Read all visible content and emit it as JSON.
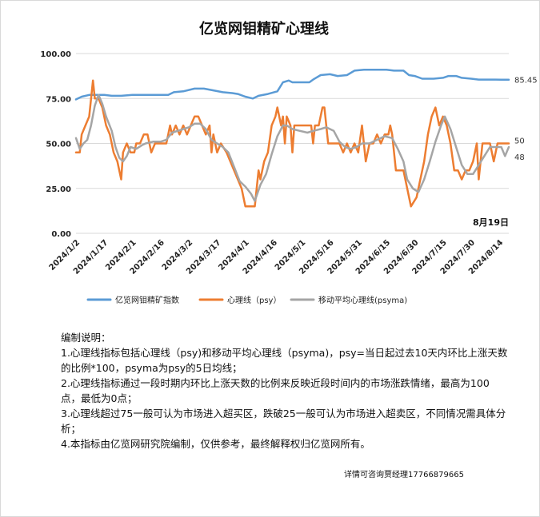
{
  "chart_data": {
    "type": "line",
    "title": "亿览网钼精矿心理线",
    "date_annotation": "8月19日",
    "ylim": [
      0,
      100
    ],
    "y_ticks": [
      "0.00",
      "25.00",
      "50.00",
      "75.00",
      "100.00"
    ],
    "x_ticks": [
      "2024/1/2",
      "2024/1/17",
      "2024/2/1",
      "2024/2/16",
      "2024/3/2",
      "2024/3/17",
      "2024/4/1",
      "2024/4/16",
      "2024/5/1",
      "2024/5/16",
      "2024/5/31",
      "2024/6/15",
      "2024/6/30",
      "2024/7/15",
      "2024/7/30",
      "2024/8/14"
    ],
    "x_range": [
      "2024-01-02",
      "2024-08-19"
    ],
    "grid": "horizontal",
    "legend_position": "bottom",
    "series": [
      {
        "name": "亿览网钼精矿指数",
        "color": "#5b9bd5",
        "end_label": "85.45",
        "points": [
          [
            "2024-01-02",
            74.5
          ],
          [
            "2024-01-05",
            76
          ],
          [
            "2024-01-09",
            77
          ],
          [
            "2024-01-13",
            77
          ],
          [
            "2024-01-17",
            77
          ],
          [
            "2024-01-21",
            76.5
          ],
          [
            "2024-01-26",
            76.5
          ],
          [
            "2024-02-01",
            77
          ],
          [
            "2024-02-10",
            77
          ],
          [
            "2024-02-16",
            77
          ],
          [
            "2024-02-20",
            77
          ],
          [
            "2024-02-23",
            78.5
          ],
          [
            "2024-02-28",
            79
          ],
          [
            "2024-03-05",
            80.5
          ],
          [
            "2024-03-10",
            80.5
          ],
          [
            "2024-03-15",
            79.5
          ],
          [
            "2024-03-20",
            78.5
          ],
          [
            "2024-03-25",
            78
          ],
          [
            "2024-03-28",
            77.5
          ],
          [
            "2024-04-01",
            76
          ],
          [
            "2024-04-05",
            75
          ],
          [
            "2024-04-08",
            76.5
          ],
          [
            "2024-04-13",
            77.5
          ],
          [
            "2024-04-18",
            79
          ],
          [
            "2024-04-21",
            84
          ],
          [
            "2024-04-24",
            85
          ],
          [
            "2024-04-26",
            84
          ],
          [
            "2024-05-01",
            84
          ],
          [
            "2024-05-05",
            84
          ],
          [
            "2024-05-07",
            85.5
          ],
          [
            "2024-05-11",
            88
          ],
          [
            "2024-05-16",
            88.5
          ],
          [
            "2024-05-20",
            87.5
          ],
          [
            "2024-05-25",
            88
          ],
          [
            "2024-05-29",
            90.5
          ],
          [
            "2024-06-03",
            91
          ],
          [
            "2024-06-08",
            91
          ],
          [
            "2024-06-15",
            91
          ],
          [
            "2024-06-19",
            90.5
          ],
          [
            "2024-06-24",
            90.5
          ],
          [
            "2024-06-27",
            88
          ],
          [
            "2024-06-30",
            87.5
          ],
          [
            "2024-07-04",
            86
          ],
          [
            "2024-07-10",
            86
          ],
          [
            "2024-07-15",
            86.5
          ],
          [
            "2024-07-18",
            87.5
          ],
          [
            "2024-07-22",
            87.5
          ],
          [
            "2024-07-25",
            86.5
          ],
          [
            "2024-07-30",
            86
          ],
          [
            "2024-08-03",
            85.5
          ],
          [
            "2024-08-08",
            85.5
          ],
          [
            "2024-08-12",
            85.5
          ],
          [
            "2024-08-15",
            85.45
          ],
          [
            "2024-08-19",
            85.45
          ]
        ]
      },
      {
        "name": "心理线（psy）",
        "color": "#ed7d31",
        "end_label": "50",
        "points": [
          [
            "2024-01-02",
            45
          ],
          [
            "2024-01-04",
            45
          ],
          [
            "2024-01-05",
            55
          ],
          [
            "2024-01-07",
            60
          ],
          [
            "2024-01-09",
            65
          ],
          [
            "2024-01-11",
            85
          ],
          [
            "2024-01-12",
            75
          ],
          [
            "2024-01-14",
            75
          ],
          [
            "2024-01-16",
            70
          ],
          [
            "2024-01-18",
            60
          ],
          [
            "2024-01-20",
            55
          ],
          [
            "2024-01-22",
            45
          ],
          [
            "2024-01-24",
            40
          ],
          [
            "2024-01-26",
            30
          ],
          [
            "2024-01-27",
            45
          ],
          [
            "2024-01-29",
            50
          ],
          [
            "2024-01-31",
            45
          ],
          [
            "2024-02-02",
            45
          ],
          [
            "2024-02-03",
            50
          ],
          [
            "2024-02-05",
            50
          ],
          [
            "2024-02-07",
            55
          ],
          [
            "2024-02-09",
            55
          ],
          [
            "2024-02-11",
            45
          ],
          [
            "2024-02-13",
            50
          ],
          [
            "2024-02-15",
            50
          ],
          [
            "2024-02-17",
            50
          ],
          [
            "2024-02-19",
            50
          ],
          [
            "2024-02-20",
            55
          ],
          [
            "2024-02-21",
            60
          ],
          [
            "2024-02-22",
            55
          ],
          [
            "2024-02-24",
            60
          ],
          [
            "2024-02-26",
            55
          ],
          [
            "2024-02-28",
            60
          ],
          [
            "2024-03-01",
            55
          ],
          [
            "2024-03-03",
            60
          ],
          [
            "2024-03-05",
            65
          ],
          [
            "2024-03-07",
            65
          ],
          [
            "2024-03-09",
            60
          ],
          [
            "2024-03-11",
            55
          ],
          [
            "2024-03-13",
            60
          ],
          [
            "2024-03-14",
            45
          ],
          [
            "2024-03-15",
            55
          ],
          [
            "2024-03-17",
            45
          ],
          [
            "2024-03-19",
            50
          ],
          [
            "2024-03-22",
            45
          ],
          [
            "2024-03-24",
            40
          ],
          [
            "2024-03-26",
            35
          ],
          [
            "2024-03-28",
            30
          ],
          [
            "2024-03-30",
            25
          ],
          [
            "2024-04-01",
            15
          ],
          [
            "2024-04-04",
            15
          ],
          [
            "2024-04-06",
            15
          ],
          [
            "2024-04-08",
            35
          ],
          [
            "2024-04-09",
            30
          ],
          [
            "2024-04-11",
            40
          ],
          [
            "2024-04-13",
            45
          ],
          [
            "2024-04-15",
            60
          ],
          [
            "2024-04-17",
            65
          ],
          [
            "2024-04-18",
            70
          ],
          [
            "2024-04-20",
            60
          ],
          [
            "2024-04-21",
            65
          ],
          [
            "2024-04-22",
            50
          ],
          [
            "2024-04-23",
            65
          ],
          [
            "2024-04-25",
            60
          ],
          [
            "2024-04-26",
            45
          ],
          [
            "2024-04-27",
            60
          ],
          [
            "2024-05-01",
            60
          ],
          [
            "2024-05-04",
            60
          ],
          [
            "2024-05-06",
            60
          ],
          [
            "2024-05-07",
            50
          ],
          [
            "2024-05-08",
            60
          ],
          [
            "2024-05-10",
            60
          ],
          [
            "2024-05-12",
            70
          ],
          [
            "2024-05-13",
            70
          ],
          [
            "2024-05-15",
            50
          ],
          [
            "2024-05-19",
            50
          ],
          [
            "2024-05-21",
            50
          ],
          [
            "2024-05-23",
            45
          ],
          [
            "2024-05-25",
            50
          ],
          [
            "2024-05-27",
            45
          ],
          [
            "2024-05-29",
            50
          ],
          [
            "2024-05-31",
            45
          ],
          [
            "2024-06-02",
            60
          ],
          [
            "2024-06-04",
            40
          ],
          [
            "2024-06-06",
            50
          ],
          [
            "2024-06-08",
            50
          ],
          [
            "2024-06-10",
            55
          ],
          [
            "2024-06-12",
            50
          ],
          [
            "2024-06-14",
            55
          ],
          [
            "2024-06-16",
            55
          ],
          [
            "2024-06-17",
            60
          ],
          [
            "2024-06-18",
            55
          ],
          [
            "2024-06-20",
            35
          ],
          [
            "2024-06-22",
            35
          ],
          [
            "2024-06-24",
            35
          ],
          [
            "2024-06-26",
            25
          ],
          [
            "2024-06-28",
            15
          ],
          [
            "2024-07-01",
            20
          ],
          [
            "2024-07-03",
            30
          ],
          [
            "2024-07-05",
            40
          ],
          [
            "2024-07-07",
            55
          ],
          [
            "2024-07-09",
            65
          ],
          [
            "2024-07-11",
            70
          ],
          [
            "2024-07-13",
            60
          ],
          [
            "2024-07-15",
            65
          ],
          [
            "2024-07-17",
            60
          ],
          [
            "2024-07-19",
            50
          ],
          [
            "2024-07-21",
            35
          ],
          [
            "2024-07-23",
            35
          ],
          [
            "2024-07-25",
            30
          ],
          [
            "2024-07-27",
            35
          ],
          [
            "2024-07-29",
            35
          ],
          [
            "2024-07-31",
            40
          ],
          [
            "2024-08-02",
            50
          ],
          [
            "2024-08-03",
            30
          ],
          [
            "2024-08-05",
            50
          ],
          [
            "2024-08-07",
            50
          ],
          [
            "2024-08-09",
            50
          ],
          [
            "2024-08-11",
            40
          ],
          [
            "2024-08-13",
            50
          ],
          [
            "2024-08-16",
            50
          ],
          [
            "2024-08-19",
            50
          ]
        ]
      },
      {
        "name": "移动平均心理线(psyma)",
        "color": "#a5a5a5",
        "end_label": "48",
        "points": [
          [
            "2024-01-02",
            53
          ],
          [
            "2024-01-04",
            47
          ],
          [
            "2024-01-06",
            50
          ],
          [
            "2024-01-08",
            52
          ],
          [
            "2024-01-10",
            60
          ],
          [
            "2024-01-12",
            71
          ],
          [
            "2024-01-14",
            77
          ],
          [
            "2024-01-16",
            72
          ],
          [
            "2024-01-18",
            65
          ],
          [
            "2024-01-21",
            57
          ],
          [
            "2024-01-23",
            48
          ],
          [
            "2024-01-25",
            42
          ],
          [
            "2024-01-27",
            40
          ],
          [
            "2024-01-29",
            43
          ],
          [
            "2024-01-31",
            48
          ],
          [
            "2024-02-03",
            47
          ],
          [
            "2024-02-06",
            49
          ],
          [
            "2024-02-08",
            50
          ],
          [
            "2024-02-12",
            51
          ],
          [
            "2024-02-16",
            51
          ],
          [
            "2024-02-19",
            52
          ],
          [
            "2024-02-22",
            56
          ],
          [
            "2024-02-25",
            57
          ],
          [
            "2024-02-28",
            58
          ],
          [
            "2024-03-02",
            59
          ],
          [
            "2024-03-05",
            61
          ],
          [
            "2024-03-08",
            61
          ],
          [
            "2024-03-11",
            58
          ],
          [
            "2024-03-14",
            52
          ],
          [
            "2024-03-17",
            50
          ],
          [
            "2024-03-20",
            48
          ],
          [
            "2024-03-23",
            45
          ],
          [
            "2024-03-26",
            37
          ],
          [
            "2024-03-29",
            29
          ],
          [
            "2024-04-01",
            26
          ],
          [
            "2024-04-04",
            22
          ],
          [
            "2024-04-06",
            18
          ],
          [
            "2024-04-09",
            27
          ],
          [
            "2024-04-12",
            33
          ],
          [
            "2024-04-15",
            44
          ],
          [
            "2024-04-18",
            54
          ],
          [
            "2024-04-21",
            60
          ],
          [
            "2024-04-23",
            60
          ],
          [
            "2024-04-26",
            58
          ],
          [
            "2024-04-30",
            57
          ],
          [
            "2024-05-04",
            56
          ],
          [
            "2024-05-07",
            57
          ],
          [
            "2024-05-11",
            58
          ],
          [
            "2024-05-14",
            59
          ],
          [
            "2024-05-18",
            57
          ],
          [
            "2024-05-21",
            51
          ],
          [
            "2024-05-24",
            48
          ],
          [
            "2024-05-27",
            47
          ],
          [
            "2024-05-30",
            48
          ],
          [
            "2024-06-02",
            50
          ],
          [
            "2024-06-06",
            50
          ],
          [
            "2024-06-10",
            52
          ],
          [
            "2024-06-14",
            54
          ],
          [
            "2024-06-18",
            53
          ],
          [
            "2024-06-21",
            47
          ],
          [
            "2024-06-24",
            40
          ],
          [
            "2024-06-26",
            30
          ],
          [
            "2024-06-29",
            25
          ],
          [
            "2024-07-02",
            23
          ],
          [
            "2024-07-05",
            30
          ],
          [
            "2024-07-08",
            40
          ],
          [
            "2024-07-11",
            51
          ],
          [
            "2024-07-14",
            60
          ],
          [
            "2024-07-16",
            65
          ],
          [
            "2024-07-19",
            58
          ],
          [
            "2024-07-22",
            48
          ],
          [
            "2024-07-25",
            38
          ],
          [
            "2024-07-28",
            33
          ],
          [
            "2024-07-31",
            33
          ],
          [
            "2024-08-03",
            38
          ],
          [
            "2024-08-06",
            43
          ],
          [
            "2024-08-09",
            48
          ],
          [
            "2024-08-12",
            48
          ],
          [
            "2024-08-15",
            48
          ],
          [
            "2024-08-17",
            43
          ],
          [
            "2024-08-19",
            48
          ]
        ]
      }
    ]
  },
  "notes": {
    "heading": "编制说明：",
    "items": [
      "1.心理线指标包括心理线（psy)和移动平均心理线（psyma)，psy=当日起过去10天内环比上涨天数的比例*100，psyma为psy的5日均线；",
      "2.心理线指标通过一段时期内环比上涨天数的比例来反映近段时间内的市场涨跌情绪，最高为100点，最低为0点；",
      "3.心理线超过75一般可认为市场进入超买区，跌破25一般可认为市场进入超卖区，不同情况需具体分析；",
      "4.本指标由亿览网研究院编制，仅供参考，最终解释权归亿览网所有。"
    ]
  },
  "contact": "详情可咨询贾经理17766879665"
}
